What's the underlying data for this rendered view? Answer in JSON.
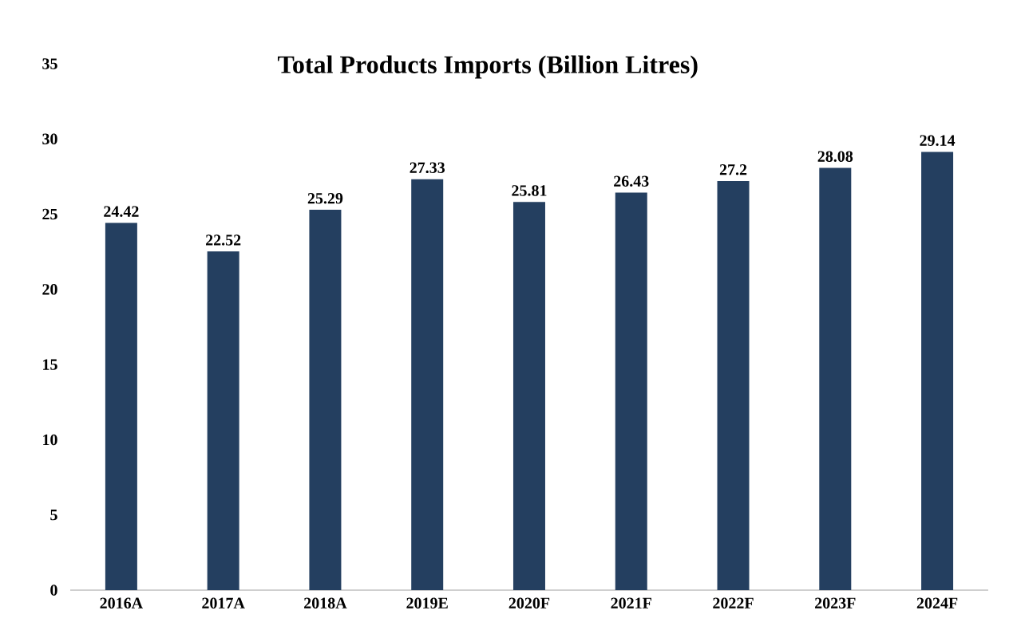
{
  "chart_data": {
    "type": "bar",
    "title": "Total Products Imports  (Billion Litres)",
    "categories": [
      "2016A",
      "2017A",
      "2018A",
      "2019E",
      "2020F",
      "2021F",
      "2022F",
      "2023F",
      "2024F"
    ],
    "values": [
      24.42,
      22.52,
      25.29,
      27.33,
      25.81,
      26.43,
      27.2,
      28.08,
      29.14
    ],
    "color": "#243f60",
    "ylim": [
      0,
      35
    ],
    "yticks": [
      0,
      5,
      10,
      15,
      20,
      25,
      30,
      35
    ],
    "data_labels": true
  }
}
